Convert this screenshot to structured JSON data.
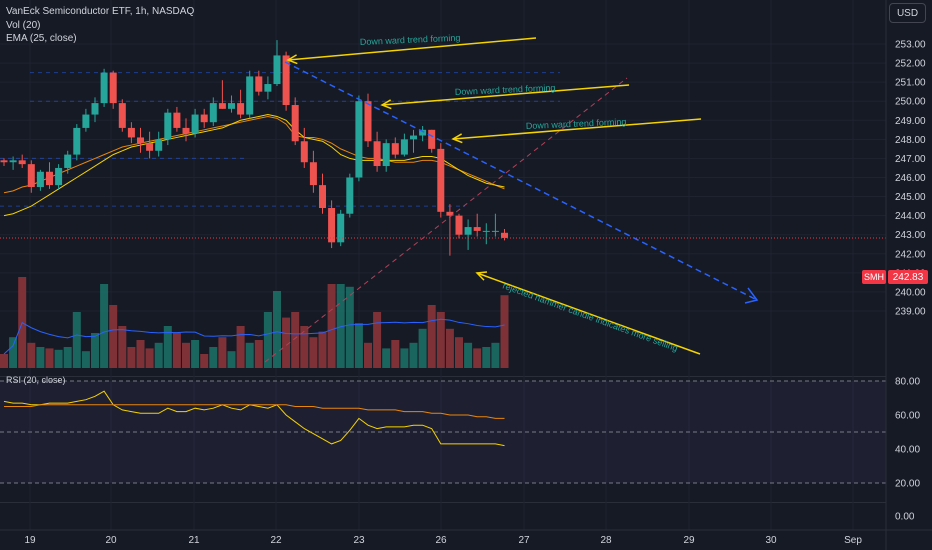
{
  "header": {
    "title": "VanEck Semiconductor ETF, 1h, NASDAQ",
    "vol_label": "Vol (20)",
    "ema_label": "EMA (25, close)",
    "currency": "USD"
  },
  "price_tag": {
    "ticker": "SMH",
    "value": "242.83"
  },
  "rsi": {
    "label": "RSI (20, close)",
    "levels": [
      80,
      50,
      20
    ]
  },
  "colors": {
    "up": "#26a69a",
    "down": "#ef5350",
    "annotation": "#f5d300",
    "trend": "#2962ff",
    "ema": "#e8860c",
    "ma_fast": "#f5d300",
    "vol_ma": "#2962ff",
    "rsi": "#f5d300"
  },
  "annotations": [
    {
      "text": "Down ward trend forming"
    },
    {
      "text": "Down ward trend forming"
    },
    {
      "text": "Down ward trend forming"
    },
    {
      "text": "rejected hammer candle indicates more selling"
    }
  ],
  "chart_data": [
    {
      "type": "candlestick",
      "title": "VanEck Semiconductor ETF, 1h, NASDAQ",
      "x_ticks": [
        "19",
        "20",
        "21",
        "22",
        "23",
        "26",
        "27",
        "28",
        "29",
        "30",
        "Sep"
      ],
      "y_ticks": [
        239.0,
        240.0,
        241.0,
        242.0,
        243.0,
        244.0,
        245.0,
        246.0,
        247.0,
        248.0,
        249.0,
        250.0,
        251.0,
        252.0,
        253.0
      ],
      "ylim": [
        238.6,
        253.8
      ],
      "last_price": 242.83,
      "candles": [
        [
          246.9,
          247.0,
          246.6,
          246.8
        ],
        [
          246.8,
          247.1,
          246.4,
          246.9
        ],
        [
          246.9,
          247.2,
          246.5,
          246.7
        ],
        [
          246.7,
          246.9,
          245.2,
          245.5
        ],
        [
          245.5,
          246.4,
          245.3,
          246.3
        ],
        [
          246.3,
          246.8,
          245.4,
          245.6
        ],
        [
          245.6,
          246.7,
          245.4,
          246.5
        ],
        [
          246.5,
          247.4,
          246.2,
          247.2
        ],
        [
          247.2,
          248.8,
          246.9,
          248.6
        ],
        [
          248.6,
          249.6,
          248.4,
          249.3
        ],
        [
          249.3,
          250.2,
          248.9,
          249.9
        ],
        [
          249.9,
          251.7,
          249.7,
          251.5
        ],
        [
          251.5,
          251.6,
          249.6,
          249.9
        ],
        [
          249.9,
          250.1,
          248.4,
          248.6
        ],
        [
          248.6,
          248.9,
          247.8,
          248.1
        ],
        [
          248.1,
          248.6,
          247.3,
          247.8
        ],
        [
          247.8,
          248.4,
          247.0,
          247.4
        ],
        [
          247.4,
          248.4,
          247.1,
          248.0
        ],
        [
          248.0,
          249.6,
          247.7,
          249.4
        ],
        [
          249.4,
          249.7,
          248.4,
          248.6
        ],
        [
          248.6,
          249.1,
          247.9,
          248.3
        ],
        [
          248.3,
          249.6,
          248.1,
          249.3
        ],
        [
          249.3,
          249.6,
          248.6,
          248.9
        ],
        [
          248.9,
          250.2,
          248.7,
          249.9
        ],
        [
          249.9,
          251.1,
          249.6,
          249.6
        ],
        [
          249.6,
          250.3,
          249.4,
          249.9
        ],
        [
          249.9,
          250.6,
          249.1,
          249.3
        ],
        [
          249.3,
          251.6,
          249.1,
          251.3
        ],
        [
          251.3,
          251.6,
          250.3,
          250.5
        ],
        [
          250.5,
          251.3,
          250.1,
          250.9
        ],
        [
          250.9,
          253.2,
          250.8,
          252.4
        ],
        [
          252.4,
          252.6,
          249.5,
          249.8
        ],
        [
          249.8,
          250.2,
          247.7,
          247.9
        ],
        [
          247.9,
          248.6,
          246.5,
          246.8
        ],
        [
          246.8,
          247.4,
          245.2,
          245.6
        ],
        [
          245.6,
          246.2,
          244.1,
          244.4
        ],
        [
          244.4,
          244.8,
          242.3,
          242.6
        ],
        [
          242.6,
          244.3,
          242.4,
          244.1
        ],
        [
          244.1,
          246.2,
          243.9,
          246.0
        ],
        [
          246.0,
          250.3,
          245.8,
          250.0
        ],
        [
          250.0,
          250.4,
          247.6,
          247.9
        ],
        [
          247.9,
          248.4,
          246.3,
          246.6
        ],
        [
          246.6,
          248.0,
          246.3,
          247.8
        ],
        [
          247.8,
          248.1,
          247.0,
          247.2
        ],
        [
          247.2,
          248.3,
          247.1,
          248.0
        ],
        [
          248.0,
          248.5,
          247.3,
          248.2
        ],
        [
          248.2,
          248.7,
          247.9,
          248.5
        ],
        [
          248.5,
          248.5,
          247.3,
          247.5
        ],
        [
          247.5,
          247.8,
          243.9,
          244.2
        ],
        [
          244.2,
          244.6,
          241.9,
          244.0
        ],
        [
          244.0,
          244.1,
          242.8,
          243.0
        ],
        [
          243.0,
          243.8,
          242.2,
          243.4
        ],
        [
          243.4,
          244.1,
          242.9,
          243.2
        ],
        [
          243.2,
          243.6,
          242.5,
          243.2
        ],
        [
          243.2,
          244.1,
          242.9,
          243.2
        ],
        [
          243.1,
          243.3,
          242.7,
          242.83
        ]
      ],
      "volume": [
        10,
        22,
        65,
        18,
        15,
        14,
        13,
        15,
        40,
        12,
        25,
        60,
        45,
        30,
        15,
        20,
        14,
        18,
        30,
        25,
        18,
        20,
        10,
        15,
        22,
        12,
        30,
        18,
        20,
        40,
        55,
        36,
        40,
        30,
        22,
        26,
        60,
        60,
        58,
        32,
        18,
        40,
        14,
        20,
        14,
        18,
        28,
        45,
        40,
        28,
        22,
        18,
        14,
        15,
        18,
        52
      ],
      "series": [
        {
          "name": "EMA (25, close)",
          "values": [
            245.2,
            245.3,
            245.5,
            245.6,
            245.8,
            246.0,
            246.2,
            246.4,
            246.6,
            246.8,
            247.0,
            247.2,
            247.4,
            247.6,
            247.7,
            247.8,
            247.9,
            248.0,
            248.1,
            248.2,
            248.3,
            248.4,
            248.5,
            248.6,
            248.7,
            248.8,
            248.9,
            249.0,
            249.1,
            249.2,
            249.1,
            248.8,
            248.2,
            248.1,
            248.1,
            248.0,
            247.8,
            247.5,
            247.3,
            247.1,
            247.0,
            247.0,
            246.9,
            246.8,
            246.8,
            246.8,
            246.9,
            246.9,
            246.8,
            246.6,
            246.4,
            246.2,
            246.0,
            245.8,
            245.6,
            245.4
          ]
        },
        {
          "name": "MA",
          "values": [
            244.0,
            244.1,
            244.3,
            244.5,
            244.8,
            245.1,
            245.4,
            245.7,
            246.0,
            246.3,
            246.6,
            246.9,
            247.2,
            247.4,
            247.6,
            247.7,
            247.8,
            247.9,
            248.0,
            248.1,
            248.2,
            248.3,
            248.4,
            248.5,
            248.6,
            248.8,
            249.0,
            249.1,
            249.2,
            249.3,
            249.2,
            249.0,
            248.5,
            248.1,
            248.0,
            247.9,
            247.6,
            247.2,
            247.0,
            246.9,
            246.9,
            246.9,
            246.9,
            246.9,
            246.9,
            247.0,
            247.1,
            247.1,
            247.0,
            246.7,
            246.4,
            246.1,
            245.9,
            245.7,
            245.6,
            245.5
          ]
        }
      ],
      "volume_ma_label": "Vol (20)"
    },
    {
      "type": "line",
      "title": "RSI (20, close)",
      "y_ticks": [
        0.0,
        20.0,
        40.0,
        60.0,
        80.0
      ],
      "ylim": [
        -5,
        82
      ],
      "series": [
        {
          "name": "RSI (20, close)",
          "values": [
            68,
            67,
            67,
            66,
            66,
            67,
            67,
            67,
            68,
            69,
            71,
            74,
            66,
            63,
            62,
            61,
            61,
            61,
            64,
            62,
            62,
            64,
            63,
            64,
            66,
            64,
            63,
            66,
            65,
            64,
            66,
            60,
            56,
            52,
            49,
            46,
            43,
            45,
            51,
            58,
            54,
            52,
            53,
            53,
            53,
            54,
            54,
            52,
            43,
            43,
            43,
            43,
            43,
            43,
            43,
            42
          ]
        },
        {
          "name": "RSI MA",
          "values": [
            65,
            65,
            65,
            65,
            66,
            66,
            66,
            66,
            66,
            66,
            66,
            66,
            66,
            66,
            66,
            66,
            66,
            66,
            66,
            66,
            66,
            66,
            66,
            66,
            66,
            66,
            66,
            66,
            66,
            66,
            66,
            66,
            65,
            65,
            65,
            64,
            64,
            64,
            64,
            64,
            63,
            63,
            63,
            63,
            62,
            62,
            62,
            61,
            61,
            60,
            60,
            60,
            59,
            59,
            58,
            58
          ]
        }
      ]
    }
  ]
}
